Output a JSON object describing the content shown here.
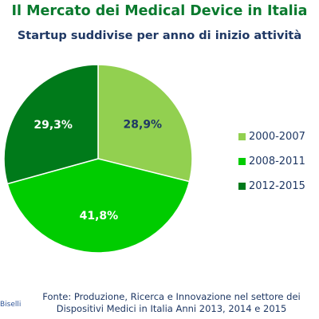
{
  "title": "Il Mercato dei Medical Device in Italia",
  "subtitle": "Startup suddivise per anno di inizio attività",
  "chart_data": {
    "type": "pie",
    "categories": [
      "2000-2007",
      "2008-2011",
      "2012-2015"
    ],
    "values": [
      28.9,
      41.8,
      29.3
    ],
    "labels": [
      "28,9%",
      "41,8%",
      "29,3%"
    ],
    "colors": [
      "#92d050",
      "#00cc00",
      "#007a1a"
    ],
    "label_colors": [
      "#1f3864",
      "#ffffff",
      "#ffffff"
    ],
    "legend_position": "right",
    "start": "12 o'clock, clockwise"
  },
  "legend": [
    {
      "label": "2000-2007",
      "color": "#92d050"
    },
    {
      "label": "2008-2011",
      "color": "#00cc00"
    },
    {
      "label": "2012-2015",
      "color": "#007a1a"
    }
  ],
  "source": {
    "line1": "Fonte: Produzione, Ricerca e Innovazione nel settore dei",
    "line2": "Dispositivi Medici in Italia  Anni 2013, 2014 e 2015"
  },
  "credit": "Biselli"
}
